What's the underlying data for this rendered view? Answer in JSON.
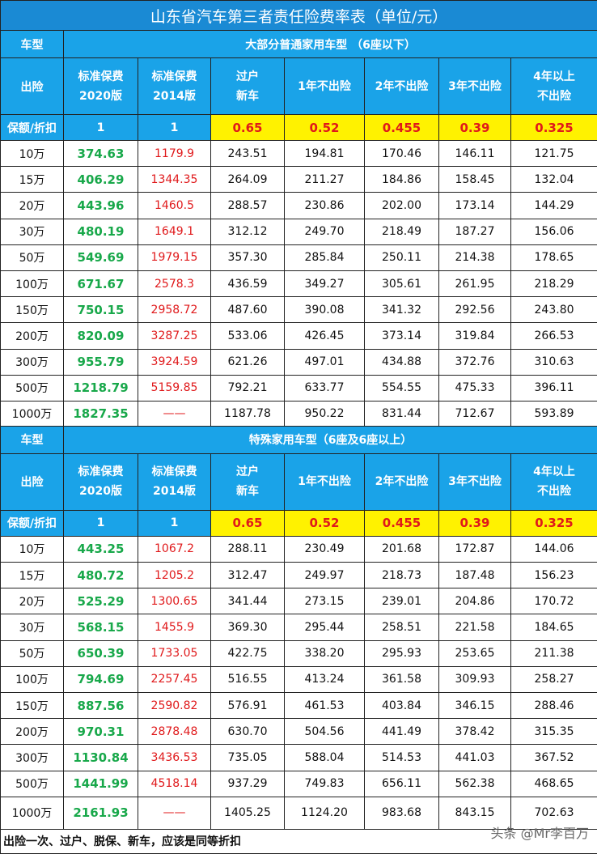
{
  "title": "山东省汽车第三者责任险费率表（单位/元）",
  "footer": "出险一次、过户、脱保、新车，应该是同等折扣",
  "watermark": "头条 @Mr李百万",
  "sections": [
    {
      "type_label": "车型",
      "type_name": "大部分普通家用车型 （6座以下）",
      "head_label": "出险",
      "columns": [
        "标准保费\n2020版",
        "标准保费\n2014版",
        "过户\n新车",
        "1年不出险",
        "2年不出险",
        "3年不出险",
        "4年以上\n不出险"
      ],
      "discount_label": "保额/折扣",
      "discounts": [
        "1",
        "1",
        "0.65",
        "0.52",
        "0.455",
        "0.39",
        "0.325"
      ],
      "rows": [
        [
          "10万",
          "374.63",
          "1179.9",
          "243.51",
          "194.81",
          "170.46",
          "146.11",
          "121.75"
        ],
        [
          "15万",
          "406.29",
          "1344.35",
          "264.09",
          "211.27",
          "184.86",
          "158.45",
          "132.04"
        ],
        [
          "20万",
          "443.96",
          "1460.5",
          "288.57",
          "230.86",
          "202.00",
          "173.14",
          "144.29"
        ],
        [
          "30万",
          "480.19",
          "1649.1",
          "312.12",
          "249.70",
          "218.49",
          "187.27",
          "156.06"
        ],
        [
          "50万",
          "549.69",
          "1979.15",
          "357.30",
          "285.84",
          "250.11",
          "214.38",
          "178.65"
        ],
        [
          "100万",
          "671.67",
          "2578.3",
          "436.59",
          "349.27",
          "305.61",
          "261.95",
          "218.29"
        ],
        [
          "150万",
          "750.15",
          "2958.72",
          "487.60",
          "390.08",
          "341.32",
          "292.56",
          "243.80"
        ],
        [
          "200万",
          "820.09",
          "3287.25",
          "533.06",
          "426.45",
          "373.14",
          "319.84",
          "266.53"
        ],
        [
          "300万",
          "955.79",
          "3924.59",
          "621.26",
          "497.01",
          "434.88",
          "372.76",
          "310.63"
        ],
        [
          "500万",
          "1218.79",
          "5159.85",
          "792.21",
          "633.77",
          "554.55",
          "475.33",
          "396.11"
        ],
        [
          "1000万",
          "1827.35",
          "——",
          "1187.78",
          "950.22",
          "831.44",
          "712.67",
          "593.89"
        ]
      ]
    },
    {
      "type_label": "车型",
      "type_name": "特殊家用车型（6座及6座以上）",
      "head_label": "出险",
      "columns": [
        "标准保费\n2020版",
        "标准保费\n2014版",
        "过户\n新车",
        "1年不出险",
        "2年不出险",
        "3年不出险",
        "4年以上\n不出险"
      ],
      "discount_label": "保额/折扣",
      "discounts": [
        "1",
        "1",
        "0.65",
        "0.52",
        "0.455",
        "0.39",
        "0.325"
      ],
      "rows": [
        [
          "10万",
          "443.25",
          "1067.2",
          "288.11",
          "230.49",
          "201.68",
          "172.87",
          "144.06"
        ],
        [
          "15万",
          "480.72",
          "1205.2",
          "312.47",
          "249.97",
          "218.73",
          "187.48",
          "156.23"
        ],
        [
          "20万",
          "525.29",
          "1300.65",
          "341.44",
          "273.15",
          "239.01",
          "204.86",
          "170.72"
        ],
        [
          "30万",
          "568.15",
          "1455.9",
          "369.30",
          "295.44",
          "258.51",
          "221.58",
          "184.65"
        ],
        [
          "50万",
          "650.39",
          "1733.05",
          "422.75",
          "338.20",
          "295.93",
          "253.65",
          "211.38"
        ],
        [
          "100万",
          "794.69",
          "2257.45",
          "516.55",
          "413.24",
          "361.58",
          "309.93",
          "258.27"
        ],
        [
          "150万",
          "887.56",
          "2590.82",
          "576.91",
          "461.53",
          "403.84",
          "346.15",
          "288.46"
        ],
        [
          "200万",
          "970.31",
          "2878.48",
          "630.70",
          "504.56",
          "441.49",
          "378.42",
          "315.35"
        ],
        [
          "300万",
          "1130.84",
          "3436.53",
          "735.05",
          "588.04",
          "514.53",
          "441.03",
          "367.52"
        ],
        [
          "500万",
          "1441.99",
          "4518.14",
          "937.29",
          "749.83",
          "656.11",
          "562.38",
          "468.65"
        ],
        [
          "1000万",
          "2161.93",
          "——",
          "1405.25",
          "1124.20",
          "983.68",
          "843.15",
          "702.63"
        ]
      ]
    }
  ]
}
